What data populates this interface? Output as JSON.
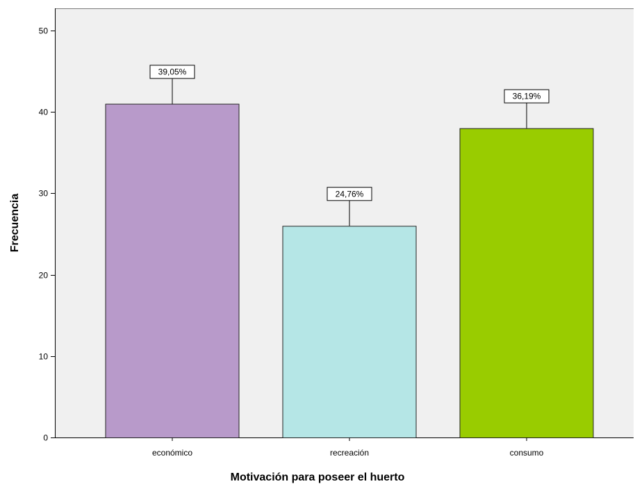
{
  "chart_data": {
    "type": "bar",
    "categories": [
      "económico",
      "recreación",
      "consumo"
    ],
    "values": [
      41,
      26,
      38
    ],
    "data_labels": [
      "39,05%",
      "24,76%",
      "36,19%"
    ],
    "colors": [
      "#b89aca",
      "#b5e6e6",
      "#99cc00"
    ],
    "plot_background": "#f0f0f0",
    "xlabel": "Motivación para poseer el huerto",
    "ylabel": "Frecuencia",
    "ylim": [
      0,
      52
    ],
    "yticks": [
      0,
      10,
      20,
      30,
      40,
      50
    ],
    "grid": false,
    "legend": false
  }
}
